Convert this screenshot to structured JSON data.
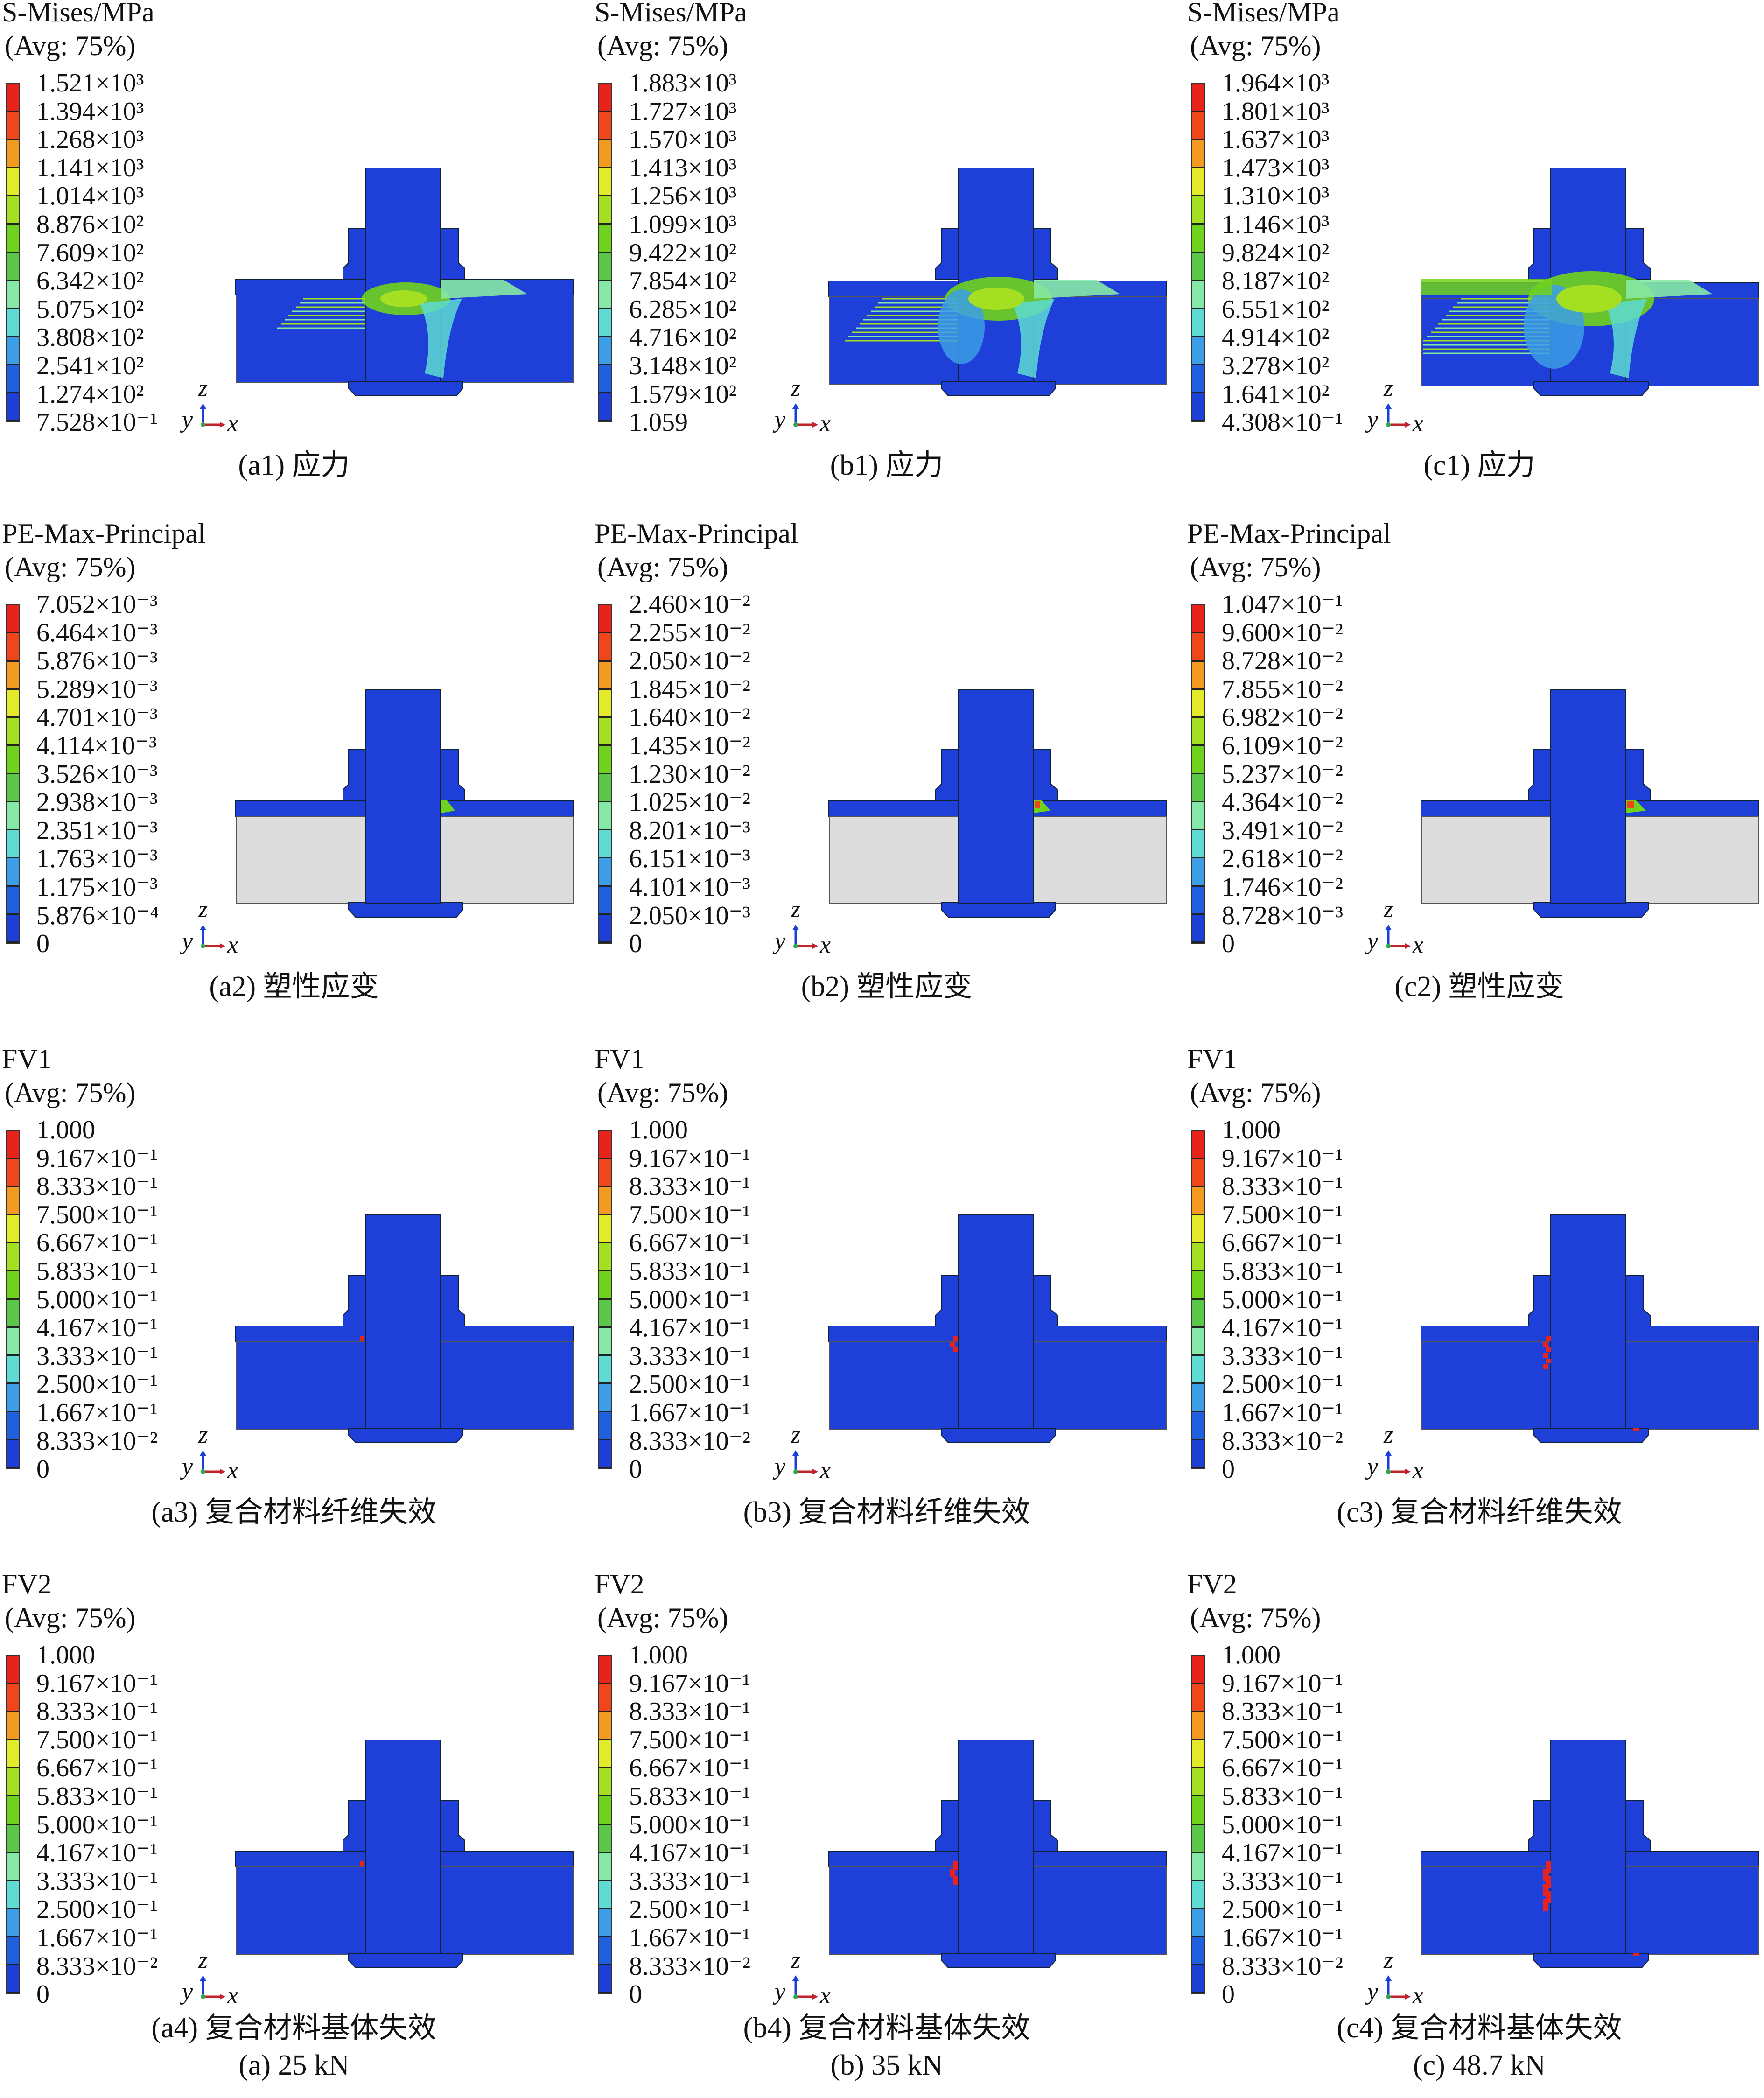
{
  "colors": {
    "bands_top_to_bottom": [
      "#e8231b",
      "#f0461c",
      "#f39a20",
      "#e2ea2a",
      "#a4df22",
      "#6fd21c",
      "#5cc84a",
      "#86e8a6",
      "#5edbd3",
      "#3c9ee6",
      "#2060e0",
      "#1c3fd6"
    ],
    "model_base": "#1e40d8",
    "unloaded_plate": "#dcdcdc"
  },
  "rows": [
    {
      "title": "S-Mises/MPa",
      "avg": "(Avg: 75%)",
      "kind": "stress",
      "columns": [
        {
          "labels": [
            "1.521×10³",
            "1.394×10³",
            "1.268×10³",
            "1.141×10³",
            "1.014×10³",
            "8.876×10²",
            "7.609×10²",
            "6.342×10²",
            "5.075×10²",
            "3.808×10²",
            "2.541×10²",
            "1.274×10²",
            "7.528×10⁻¹"
          ],
          "caption": "(a1) 应力"
        },
        {
          "labels": [
            "1.883×10³",
            "1.727×10³",
            "1.570×10³",
            "1.413×10³",
            "1.256×10³",
            "1.099×10³",
            "9.422×10²",
            "7.854×10²",
            "6.285×10²",
            "4.716×10²",
            "3.148×10²",
            "1.579×10²",
            "1.059"
          ],
          "caption": "(b1) 应力"
        },
        {
          "labels": [
            "1.964×10³",
            "1.801×10³",
            "1.637×10³",
            "1.473×10³",
            "1.310×10³",
            "1.146×10³",
            "9.824×10²",
            "8.187×10²",
            "6.551×10²",
            "4.914×10²",
            "3.278×10²",
            "1.641×10²",
            "4.308×10⁻¹"
          ],
          "caption": "(c1) 应力"
        }
      ]
    },
    {
      "title": "PE-Max-Principal",
      "avg": "(Avg: 75%)",
      "kind": "strain",
      "columns": [
        {
          "labels": [
            "7.052×10⁻³",
            "6.464×10⁻³",
            "5.876×10⁻³",
            "5.289×10⁻³",
            "4.701×10⁻³",
            "4.114×10⁻³",
            "3.526×10⁻³",
            "2.938×10⁻³",
            "2.351×10⁻³",
            "1.763×10⁻³",
            "1.175×10⁻³",
            "5.876×10⁻⁴",
            "0"
          ],
          "caption": "(a2) 塑性应变"
        },
        {
          "labels": [
            "2.460×10⁻²",
            "2.255×10⁻²",
            "2.050×10⁻²",
            "1.845×10⁻²",
            "1.640×10⁻²",
            "1.435×10⁻²",
            "1.230×10⁻²",
            "1.025×10⁻²",
            "8.201×10⁻³",
            "6.151×10⁻³",
            "4.101×10⁻³",
            "2.050×10⁻³",
            "0"
          ],
          "caption": "(b2) 塑性应变"
        },
        {
          "labels": [
            "1.047×10⁻¹",
            "9.600×10⁻²",
            "8.728×10⁻²",
            "7.855×10⁻²",
            "6.982×10⁻²",
            "6.109×10⁻²",
            "5.237×10⁻²",
            "4.364×10⁻²",
            "3.491×10⁻²",
            "2.618×10⁻²",
            "1.746×10⁻²",
            "8.728×10⁻³",
            "0"
          ],
          "caption": "(c2) 塑性应变"
        }
      ]
    },
    {
      "title": "FV1",
      "avg": "(Avg: 75%)",
      "kind": "fv1",
      "columns": [
        {
          "labels": [
            "1.000",
            "9.167×10⁻¹",
            "8.333×10⁻¹",
            "7.500×10⁻¹",
            "6.667×10⁻¹",
            "5.833×10⁻¹",
            "5.000×10⁻¹",
            "4.167×10⁻¹",
            "3.333×10⁻¹",
            "2.500×10⁻¹",
            "1.667×10⁻¹",
            "8.333×10⁻²",
            "0"
          ],
          "caption": "(a3) 复合材料纤维失效"
        },
        {
          "labels": [
            "1.000",
            "9.167×10⁻¹",
            "8.333×10⁻¹",
            "7.500×10⁻¹",
            "6.667×10⁻¹",
            "5.833×10⁻¹",
            "5.000×10⁻¹",
            "4.167×10⁻¹",
            "3.333×10⁻¹",
            "2.500×10⁻¹",
            "1.667×10⁻¹",
            "8.333×10⁻²",
            "0"
          ],
          "caption": "(b3) 复合材料纤维失效"
        },
        {
          "labels": [
            "1.000",
            "9.167×10⁻¹",
            "8.333×10⁻¹",
            "7.500×10⁻¹",
            "6.667×10⁻¹",
            "5.833×10⁻¹",
            "5.000×10⁻¹",
            "4.167×10⁻¹",
            "3.333×10⁻¹",
            "2.500×10⁻¹",
            "1.667×10⁻¹",
            "8.333×10⁻²",
            "0"
          ],
          "caption": "(c3) 复合材料纤维失效"
        }
      ]
    },
    {
      "title": "FV2",
      "avg": "(Avg: 75%)",
      "kind": "fv2",
      "columns": [
        {
          "labels": [
            "1.000",
            "9.167×10⁻¹",
            "8.333×10⁻¹",
            "7.500×10⁻¹",
            "6.667×10⁻¹",
            "5.833×10⁻¹",
            "5.000×10⁻¹",
            "4.167×10⁻¹",
            "3.333×10⁻¹",
            "2.500×10⁻¹",
            "1.667×10⁻¹",
            "8.333×10⁻²",
            "0"
          ],
          "caption": "(a4) 复合材料基体失效"
        },
        {
          "labels": [
            "1.000",
            "9.167×10⁻¹",
            "8.333×10⁻¹",
            "7.500×10⁻¹",
            "6.667×10⁻¹",
            "5.833×10⁻¹",
            "5.000×10⁻¹",
            "4.167×10⁻¹",
            "3.333×10⁻¹",
            "2.500×10⁻¹",
            "1.667×10⁻¹",
            "8.333×10⁻²",
            "0"
          ],
          "caption": "(b4) 复合材料基体失效"
        },
        {
          "labels": [
            "1.000",
            "9.167×10⁻¹",
            "8.333×10⁻¹",
            "7.500×10⁻¹",
            "6.667×10⁻¹",
            "5.833×10⁻¹",
            "5.000×10⁻¹",
            "4.167×10⁻¹",
            "3.333×10⁻¹",
            "2.500×10⁻¹",
            "1.667×10⁻¹",
            "8.333×10⁻²",
            "0"
          ],
          "caption": "(c4) 复合材料基体失效"
        }
      ]
    }
  ],
  "axes": {
    "z": "z",
    "y": "y",
    "x": "x"
  },
  "load_captions": [
    "(a) 25 kN",
    "(b) 35 kN",
    "(c) 48.7 kN"
  ]
}
